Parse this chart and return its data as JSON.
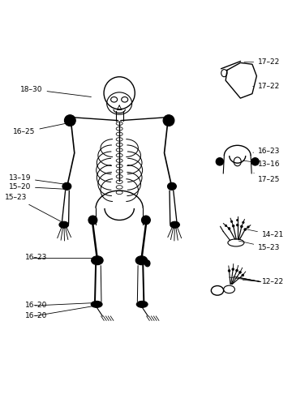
{
  "bg_color": "#ffffff",
  "fig_width": 3.76,
  "fig_height": 4.86,
  "dpi": 100
}
